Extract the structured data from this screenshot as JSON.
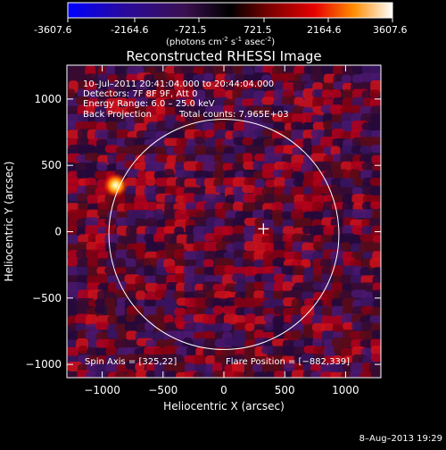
{
  "colorbar": {
    "ticks": [
      "-3607.6",
      "-2164.6",
      "-721.5",
      "721.5",
      "2164.6",
      "3607.6"
    ],
    "units_main": "(photons cm",
    "units_exp1": "-2",
    "units_mid": " s",
    "units_exp2": "-1",
    "units_tail": " asec",
    "units_exp3": "-2",
    "units_close": ")",
    "range": [
      -3607.6,
      3607.6
    ]
  },
  "chart_data": {
    "type": "heatmap",
    "title": "Reconstructed RHESSI Image",
    "xlabel": "Heliocentric X (arcsec)",
    "ylabel": "Heliocentric Y (arcsec)",
    "xlim": [
      -1290,
      1290
    ],
    "ylim": [
      -1100,
      1255
    ],
    "x_ticks": [
      -1000,
      -500,
      0,
      500,
      1000
    ],
    "y_ticks": [
      -1000,
      -500,
      0,
      500,
      1000
    ],
    "x_tick_labels": [
      "−1000",
      "−500",
      "0",
      "500",
      "1000"
    ],
    "y_tick_labels": [
      "−1000",
      "−500",
      "0",
      "500",
      "1000"
    ],
    "solar_disk_radius": 945,
    "sun_center": [
      0,
      -20
    ],
    "spin_axis": [
      325,
      22
    ],
    "flare_position": [
      -882,
      339
    ],
    "source_peak": [
      -890,
      350
    ],
    "info_lines": [
      "10–Jul–2011 20:41:04.000 to 20:44:04.000",
      "Detectors: 7F 8F 9F, Att 0",
      "Energy Range: 6.0 – 25.0 keV"
    ],
    "method": "Back Projection",
    "total_counts": "Total counts: 7.965E+03",
    "spin_axis_label": "Spin Axis = [325,22]",
    "flare_position_label": "Flare Position = [−882,339]"
  },
  "footer": {
    "date": "8–Aug–2013 19:29"
  },
  "colors": {
    "circle": "#ffffff",
    "crosshair": "#ffffff",
    "background": "#000000"
  }
}
